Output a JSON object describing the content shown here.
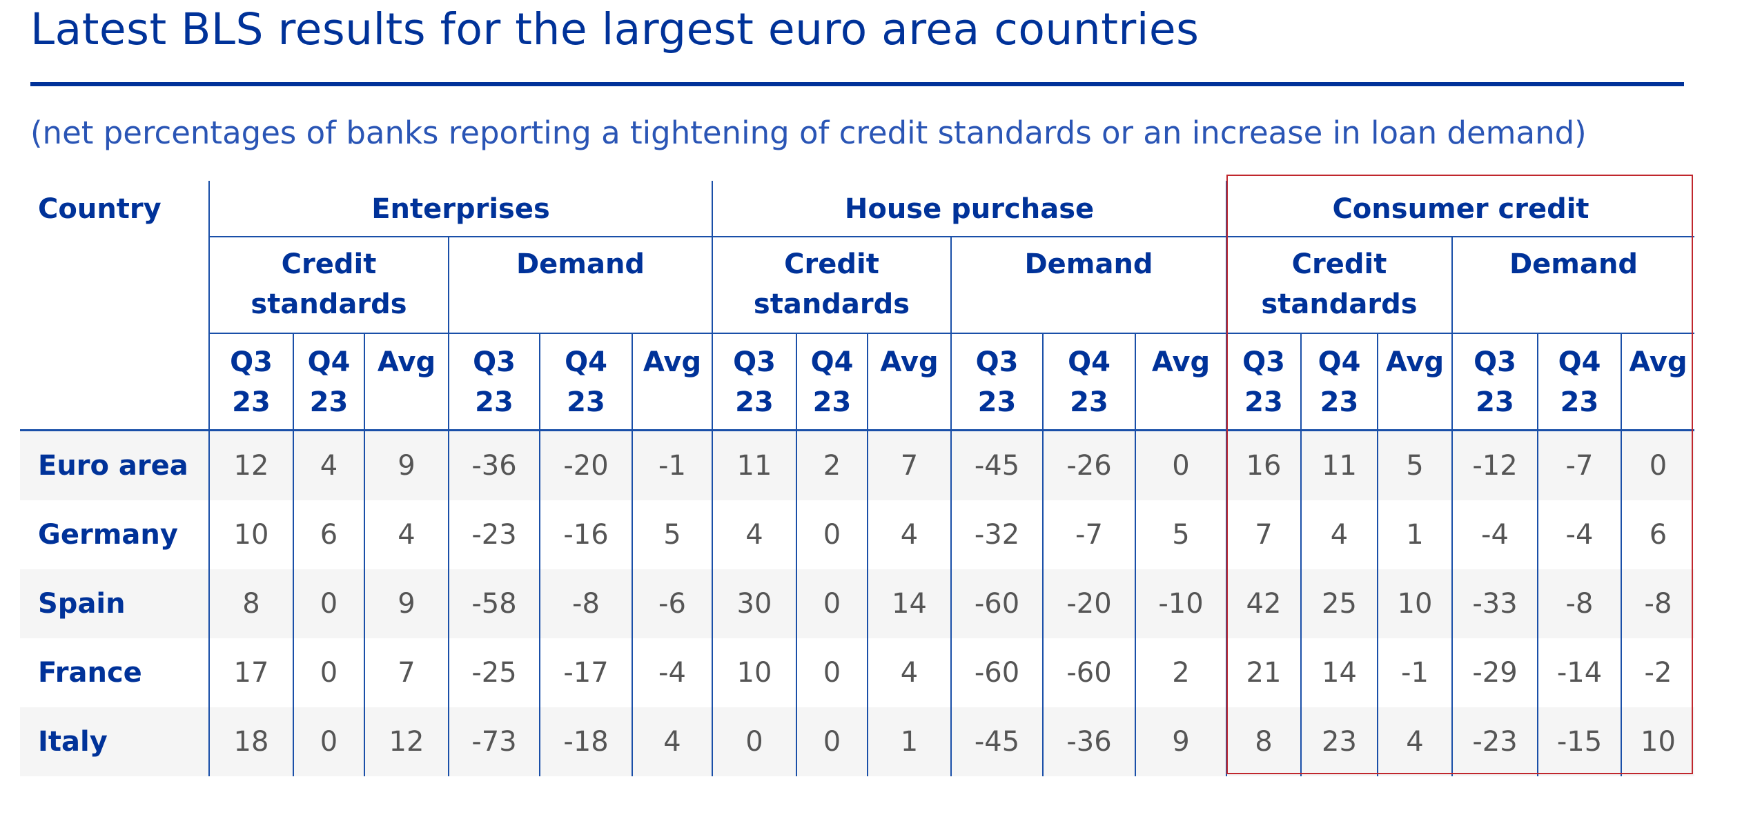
{
  "title": "Latest BLS results for the largest euro area countries",
  "subtitle": "(net percentages of banks reporting a tightening of credit standards or an increase in loan demand)",
  "colors": {
    "primary": "#003299",
    "highlight_box": "#c0272d",
    "row_shade": "#f5f5f5"
  },
  "table": {
    "country_header": "Country",
    "groups": [
      {
        "label": "Enterprises",
        "subgroups": [
          "Credit standards",
          "Demand"
        ]
      },
      {
        "label": "House purchase",
        "subgroups": [
          "Credit standards",
          "Demand"
        ]
      },
      {
        "label": "Consumer credit",
        "subgroups": [
          "Credit standards",
          "Demand"
        ]
      }
    ],
    "periods": [
      "Q3 23",
      "Q4 23",
      "Avg"
    ],
    "rows": [
      {
        "country": "Euro area",
        "values": [
          "12",
          "4",
          "9",
          "-36",
          "-20",
          "-1",
          "11",
          "2",
          "7",
          "-45",
          "-26",
          "0",
          "16",
          "11",
          "5",
          "-12",
          "-7",
          "0"
        ]
      },
      {
        "country": "Germany",
        "values": [
          "10",
          "6",
          "4",
          "-23",
          "-16",
          "5",
          "4",
          "0",
          "4",
          "-32",
          "-7",
          "5",
          "7",
          "4",
          "1",
          "-4",
          "-4",
          "6"
        ]
      },
      {
        "country": "Spain",
        "values": [
          "8",
          "0",
          "9",
          "-58",
          "-8",
          "-6",
          "30",
          "0",
          "14",
          "-60",
          "-20",
          "-10",
          "42",
          "25",
          "10",
          "-33",
          "-8",
          "-8"
        ]
      },
      {
        "country": "France",
        "values": [
          "17",
          "0",
          "7",
          "-25",
          "-17",
          "-4",
          "10",
          "0",
          "4",
          "-60",
          "-60",
          "2",
          "21",
          "14",
          "-1",
          "-29",
          "-14",
          "-2"
        ]
      },
      {
        "country": "Italy",
        "values": [
          "18",
          "0",
          "12",
          "-73",
          "-18",
          "4",
          "0",
          "0",
          "1",
          "-45",
          "-36",
          "9",
          "8",
          "23",
          "4",
          "-23",
          "-15",
          "10"
        ]
      }
    ],
    "highlighted_group": "Consumer credit"
  }
}
